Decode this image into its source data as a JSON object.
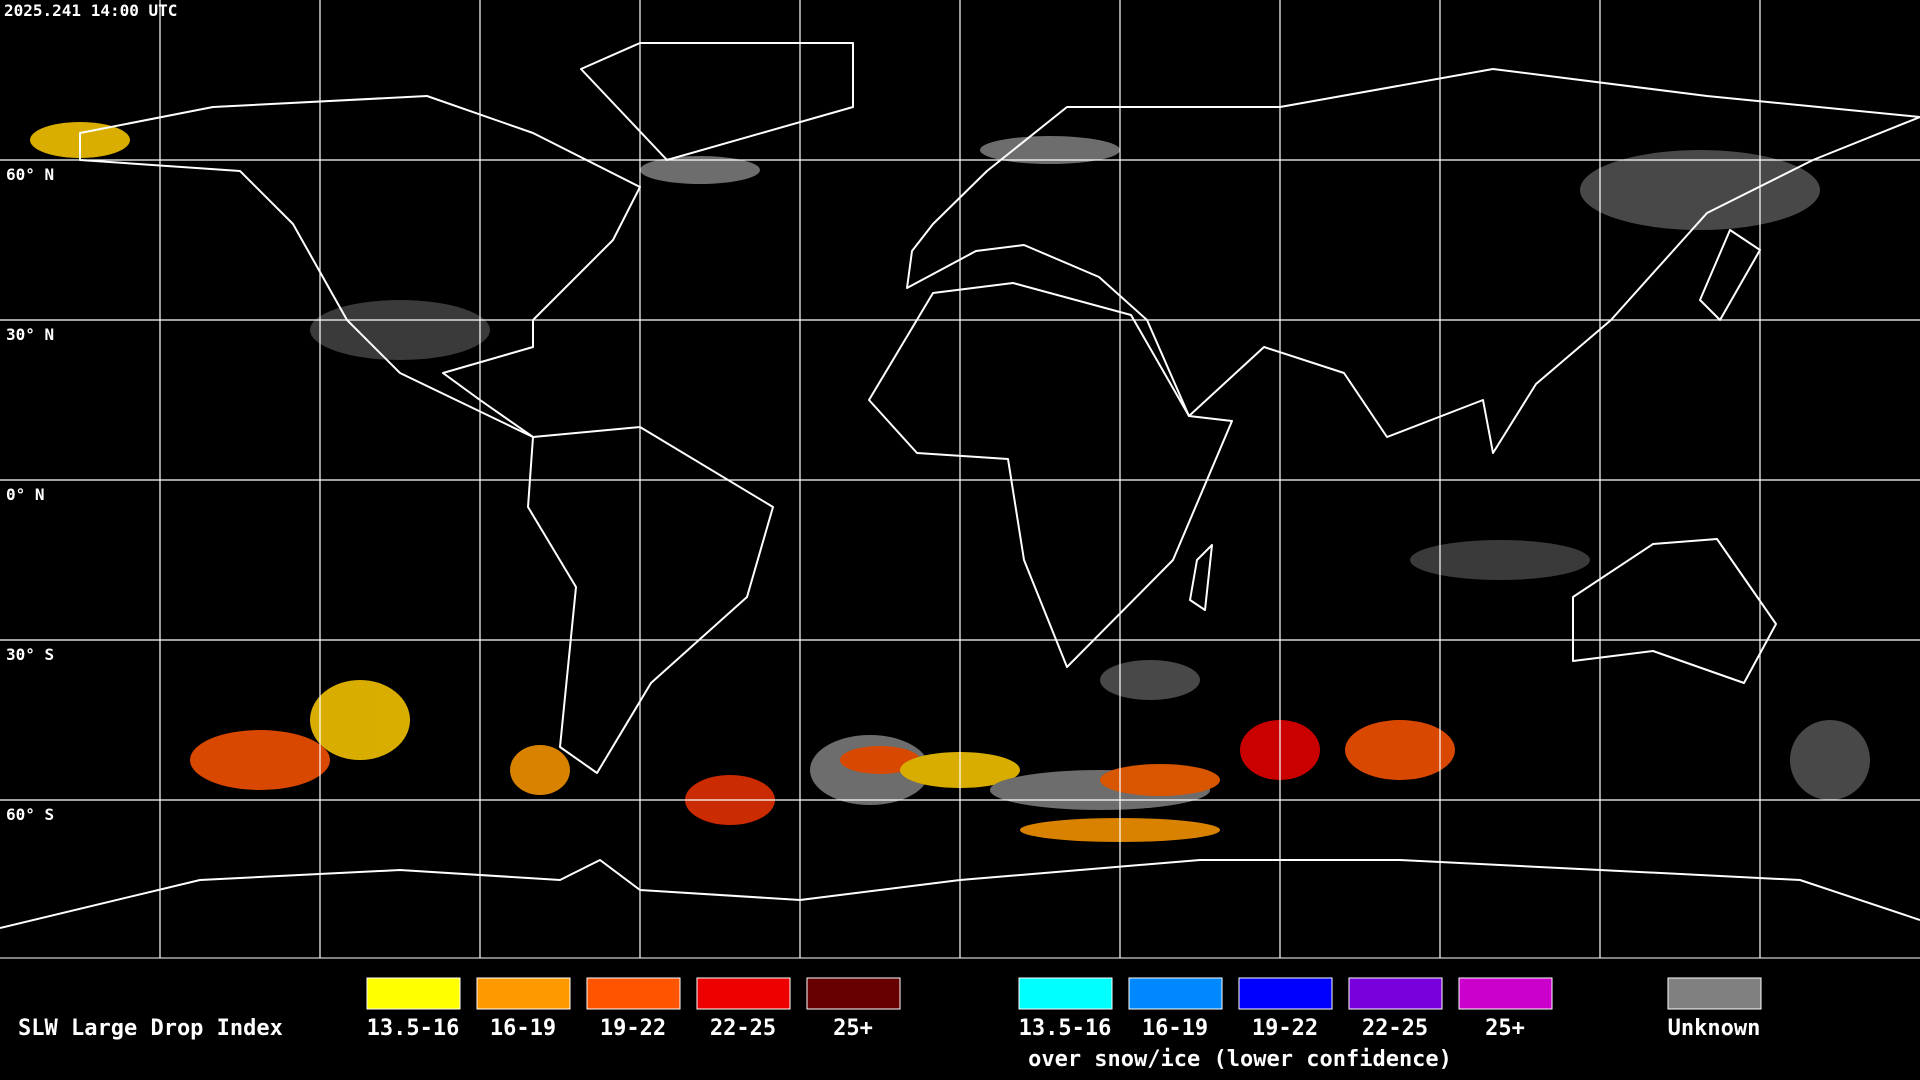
{
  "timestamp": "2025.241 14:00 UTC",
  "latitude_labels": [
    "60° N",
    "30° N",
    "0° N",
    "30° S",
    "60° S"
  ],
  "legend": {
    "title": "SLW Large Drop Index",
    "items": [
      {
        "label": "13.5-16",
        "color": "#ffff00"
      },
      {
        "label": "16-19",
        "color": "#ff9900"
      },
      {
        "label": "19-22",
        "color": "#ff5500"
      },
      {
        "label": "22-25",
        "color": "#ee0000"
      },
      {
        "label": "25+",
        "color": "#660000"
      }
    ],
    "snow_ice_items": [
      {
        "label": "13.5-16",
        "color": "#00ffff"
      },
      {
        "label": "16-19",
        "color": "#0088ff"
      },
      {
        "label": "19-22",
        "color": "#0000ff"
      },
      {
        "label": "22-25",
        "color": "#7700dd"
      },
      {
        "label": "25+",
        "color": "#cc00cc"
      }
    ],
    "snow_ice_note": "over snow/ice (lower confidence)",
    "unknown": {
      "label": "Unknown",
      "color": "#808080"
    }
  }
}
